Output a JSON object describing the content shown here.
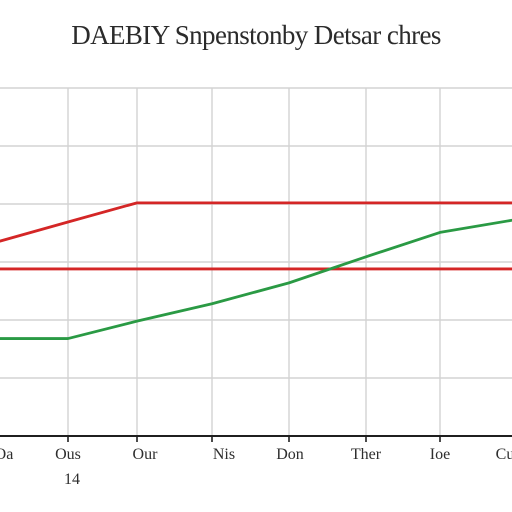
{
  "chart_data": {
    "type": "line",
    "title": "DAEBIY Snpenstonby Detsar chres",
    "categories": [
      "Oa",
      "Ous",
      "Our",
      "Nis",
      "Don",
      "Ther",
      "Ioe",
      "Cu"
    ],
    "category_sublabels": [
      "",
      "14",
      "",
      "",
      "",
      "",
      "",
      ""
    ],
    "x": [
      0,
      1,
      2,
      3,
      4,
      5,
      6,
      7
    ],
    "ylim": [
      0,
      100
    ],
    "grid": true,
    "legend": "none",
    "series": [
      {
        "color": "#d42626",
        "values": [
          56,
          61.5,
          67,
          67,
          67,
          67,
          67,
          67
        ]
      },
      {
        "color": "#d42626",
        "values": [
          48,
          48,
          48,
          48,
          48,
          48,
          48,
          48
        ]
      },
      {
        "color": "#2a9a44",
        "values": [
          28,
          28,
          33,
          38,
          44,
          51.5,
          58.5,
          62
        ]
      }
    ]
  }
}
